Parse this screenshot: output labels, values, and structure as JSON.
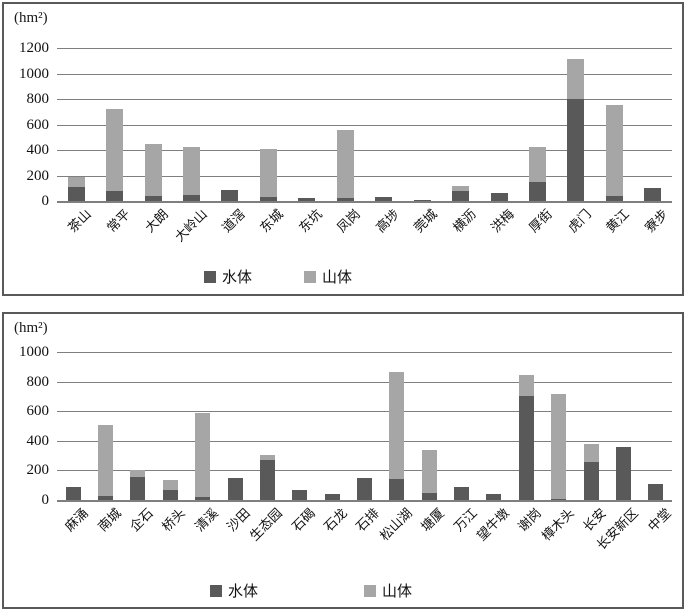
{
  "chart_data": [
    {
      "type": "bar",
      "subtype": "stacked",
      "unit_label": "(hm²)",
      "ylim": [
        0,
        1200
      ],
      "ytick_labels": [
        "0",
        "200",
        "400",
        "600",
        "800",
        "1000",
        "1200"
      ],
      "grid": true,
      "legend_position": "bottom",
      "categories": [
        "茶山",
        "常平",
        "大朗",
        "大岭山",
        "道滘",
        "东城",
        "东坑",
        "凤岗",
        "高埗",
        "莞城",
        "横沥",
        "洪梅",
        "厚街",
        "虎门",
        "黄江",
        "寮步"
      ],
      "series": [
        {
          "name": "水体",
          "color": "#595959",
          "values": [
            110,
            75,
            40,
            45,
            90,
            30,
            20,
            20,
            35,
            10,
            75,
            65,
            150,
            800,
            40,
            105
          ]
        },
        {
          "name": "山体",
          "color": "#a6a6a6",
          "values": [
            75,
            650,
            410,
            380,
            0,
            375,
            0,
            535,
            0,
            0,
            40,
            0,
            270,
            315,
            710,
            0
          ]
        }
      ],
      "legend": [
        {
          "label": "水体",
          "color": "#595959"
        },
        {
          "label": "山体",
          "color": "#a6a6a6"
        }
      ]
    },
    {
      "type": "bar",
      "subtype": "stacked",
      "unit_label": "(hm²)",
      "ylim": [
        0,
        1000
      ],
      "ytick_labels": [
        "0",
        "200",
        "400",
        "600",
        "800",
        "1000"
      ],
      "grid": true,
      "legend_position": "bottom",
      "categories": [
        "麻涌",
        "南城",
        "企石",
        "桥头",
        "清溪",
        "沙田",
        "生态园",
        "石碣",
        "石龙",
        "石排",
        "松山湖",
        "塘厦",
        "万江",
        "望牛墩",
        "谢岗",
        "樟木头",
        "长安",
        "长安新区",
        "中堂"
      ],
      "series": [
        {
          "name": "水体",
          "color": "#595959",
          "values": [
            85,
            25,
            155,
            70,
            20,
            150,
            270,
            65,
            40,
            150,
            140,
            45,
            90,
            40,
            700,
            10,
            255,
            355,
            105
          ]
        },
        {
          "name": "山体",
          "color": "#a6a6a6",
          "values": [
            0,
            480,
            45,
            65,
            570,
            0,
            35,
            0,
            0,
            0,
            725,
            290,
            0,
            0,
            145,
            705,
            125,
            0,
            0
          ]
        }
      ],
      "legend": [
        {
          "label": "水体",
          "color": "#595959"
        },
        {
          "label": "山体",
          "color": "#a6a6a6"
        }
      ]
    }
  ]
}
